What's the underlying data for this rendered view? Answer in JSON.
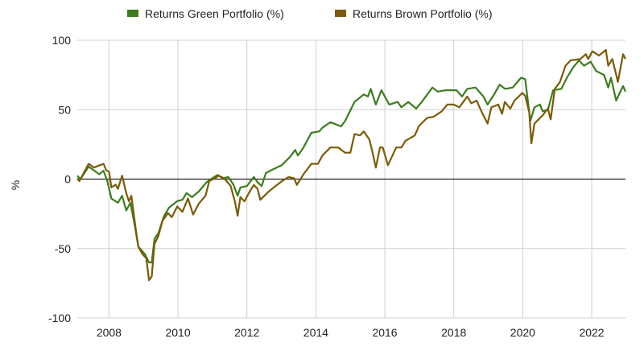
{
  "chart_data": {
    "type": "line",
    "title": "",
    "xlabel": "",
    "ylabel": "%",
    "xlim": [
      2007.08,
      2022.98
    ],
    "ylim": [
      -100,
      100
    ],
    "yticks": [
      -100,
      -50,
      0,
      50,
      100
    ],
    "xticks": [
      2008,
      2010,
      2012,
      2014,
      2016,
      2018,
      2020,
      2022
    ],
    "grid": true,
    "legend": "top",
    "series": [
      {
        "name": "Returns Green Portfolio (%)",
        "color": "#3b7d1d",
        "points": [
          [
            2007.08,
            2.5
          ],
          [
            2007.17,
            0
          ],
          [
            2007.41,
            9
          ],
          [
            2007.72,
            3.5
          ],
          [
            2007.84,
            6
          ],
          [
            2007.95,
            -1.4
          ],
          [
            2008.07,
            -14
          ],
          [
            2008.26,
            -17
          ],
          [
            2008.38,
            -12
          ],
          [
            2008.5,
            -22.6
          ],
          [
            2008.62,
            -17
          ],
          [
            2008.73,
            -31
          ],
          [
            2008.85,
            -48.6
          ],
          [
            2009.04,
            -54
          ],
          [
            2009.16,
            -60
          ],
          [
            2009.24,
            -60
          ],
          [
            2009.32,
            -43
          ],
          [
            2009.43,
            -39
          ],
          [
            2009.59,
            -27
          ],
          [
            2009.74,
            -20.6
          ],
          [
            2009.98,
            -15.8
          ],
          [
            2010.13,
            -14.9
          ],
          [
            2010.25,
            -10
          ],
          [
            2010.41,
            -13
          ],
          [
            2010.6,
            -9
          ],
          [
            2010.83,
            -2.3
          ],
          [
            2010.99,
            0.6
          ],
          [
            2011.15,
            3
          ],
          [
            2011.3,
            0.6
          ],
          [
            2011.46,
            1.5
          ],
          [
            2011.61,
            -4
          ],
          [
            2011.73,
            -12
          ],
          [
            2011.81,
            -6
          ],
          [
            2012.0,
            -5
          ],
          [
            2012.2,
            1.5
          ],
          [
            2012.31,
            -2.3
          ],
          [
            2012.43,
            -5
          ],
          [
            2012.55,
            4.4
          ],
          [
            2012.78,
            7.3
          ],
          [
            2013.01,
            10
          ],
          [
            2013.25,
            16
          ],
          [
            2013.4,
            21
          ],
          [
            2013.48,
            17
          ],
          [
            2013.64,
            22.8
          ],
          [
            2013.87,
            33.4
          ],
          [
            2014.1,
            34.4
          ],
          [
            2014.19,
            37
          ],
          [
            2014.42,
            41
          ],
          [
            2014.73,
            38
          ],
          [
            2014.85,
            42
          ],
          [
            2015.12,
            55.6
          ],
          [
            2015.39,
            61
          ],
          [
            2015.51,
            59.5
          ],
          [
            2015.59,
            65
          ],
          [
            2015.74,
            53.7
          ],
          [
            2015.9,
            64
          ],
          [
            2016.13,
            53.7
          ],
          [
            2016.37,
            55.6
          ],
          [
            2016.48,
            51.7
          ],
          [
            2016.68,
            55.6
          ],
          [
            2016.91,
            50.8
          ],
          [
            2017.07,
            55.6
          ],
          [
            2017.38,
            66
          ],
          [
            2017.53,
            63
          ],
          [
            2017.77,
            64
          ],
          [
            2018.08,
            64
          ],
          [
            2018.24,
            59.5
          ],
          [
            2018.39,
            65
          ],
          [
            2018.63,
            66
          ],
          [
            2018.86,
            59.5
          ],
          [
            2018.98,
            53.7
          ],
          [
            2019.17,
            61
          ],
          [
            2019.33,
            68
          ],
          [
            2019.49,
            65
          ],
          [
            2019.71,
            66
          ],
          [
            2019.95,
            73
          ],
          [
            2020.07,
            72
          ],
          [
            2020.22,
            42
          ],
          [
            2020.34,
            51.7
          ],
          [
            2020.5,
            53.7
          ],
          [
            2020.58,
            48.8
          ],
          [
            2020.73,
            49.8
          ],
          [
            2020.88,
            64
          ],
          [
            2021.12,
            65
          ],
          [
            2021.28,
            73
          ],
          [
            2021.47,
            80.7
          ],
          [
            2021.63,
            85.5
          ],
          [
            2021.78,
            81.7
          ],
          [
            2021.97,
            84.5
          ],
          [
            2022.13,
            77.8
          ],
          [
            2022.36,
            75
          ],
          [
            2022.48,
            66
          ],
          [
            2022.56,
            73
          ],
          [
            2022.71,
            56.6
          ],
          [
            2022.91,
            67
          ],
          [
            2022.98,
            63
          ]
        ]
      },
      {
        "name": "Returns Brown Portfolio (%)",
        "color": "#7b5b05",
        "points": [
          [
            2007.08,
            0.6
          ],
          [
            2007.14,
            -1.4
          ],
          [
            2007.41,
            11
          ],
          [
            2007.56,
            8.3
          ],
          [
            2007.84,
            11
          ],
          [
            2007.92,
            6.4
          ],
          [
            2008.0,
            5.4
          ],
          [
            2008.07,
            -6
          ],
          [
            2008.19,
            -4
          ],
          [
            2008.26,
            -7
          ],
          [
            2008.38,
            2.5
          ],
          [
            2008.5,
            -10
          ],
          [
            2008.58,
            -16
          ],
          [
            2008.65,
            -12
          ],
          [
            2008.77,
            -35
          ],
          [
            2008.85,
            -48.6
          ],
          [
            2008.97,
            -54
          ],
          [
            2009.08,
            -57
          ],
          [
            2009.16,
            -72.8
          ],
          [
            2009.24,
            -70
          ],
          [
            2009.32,
            -46.7
          ],
          [
            2009.43,
            -41
          ],
          [
            2009.55,
            -30
          ],
          [
            2009.71,
            -24.5
          ],
          [
            2009.82,
            -27.4
          ],
          [
            2009.98,
            -19.7
          ],
          [
            2010.13,
            -23.6
          ],
          [
            2010.29,
            -13.9
          ],
          [
            2010.44,
            -25.5
          ],
          [
            2010.6,
            -17.8
          ],
          [
            2010.8,
            -12
          ],
          [
            2010.91,
            -1.4
          ],
          [
            2011.07,
            0.6
          ],
          [
            2011.18,
            2.5
          ],
          [
            2011.34,
            0.6
          ],
          [
            2011.53,
            -5
          ],
          [
            2011.65,
            -16
          ],
          [
            2011.73,
            -26.4
          ],
          [
            2011.81,
            -13
          ],
          [
            2011.93,
            -16
          ],
          [
            2012.08,
            -9
          ],
          [
            2012.2,
            -4.2
          ],
          [
            2012.31,
            -7
          ],
          [
            2012.39,
            -14.9
          ],
          [
            2012.63,
            -9
          ],
          [
            2012.82,
            -5.2
          ],
          [
            2013.02,
            -1.4
          ],
          [
            2013.21,
            1.5
          ],
          [
            2013.37,
            0.6
          ],
          [
            2013.45,
            -4.2
          ],
          [
            2013.64,
            3.5
          ],
          [
            2013.87,
            11
          ],
          [
            2014.06,
            11
          ],
          [
            2014.19,
            17
          ],
          [
            2014.42,
            22.8
          ],
          [
            2014.65,
            22.8
          ],
          [
            2014.85,
            19
          ],
          [
            2015.0,
            19
          ],
          [
            2015.12,
            32.4
          ],
          [
            2015.28,
            31.5
          ],
          [
            2015.39,
            34.4
          ],
          [
            2015.55,
            28.6
          ],
          [
            2015.63,
            20.8
          ],
          [
            2015.74,
            8.3
          ],
          [
            2015.86,
            22.8
          ],
          [
            2015.94,
            22.8
          ],
          [
            2016.09,
            10
          ],
          [
            2016.33,
            22.8
          ],
          [
            2016.48,
            22.8
          ],
          [
            2016.6,
            27.6
          ],
          [
            2016.87,
            31.5
          ],
          [
            2016.99,
            38.2
          ],
          [
            2017.22,
            44
          ],
          [
            2017.42,
            45
          ],
          [
            2017.65,
            48.8
          ],
          [
            2017.81,
            53.7
          ],
          [
            2018.0,
            53.7
          ],
          [
            2018.16,
            51.7
          ],
          [
            2018.39,
            59.5
          ],
          [
            2018.51,
            54.6
          ],
          [
            2018.66,
            56.6
          ],
          [
            2018.82,
            47.9
          ],
          [
            2018.98,
            40
          ],
          [
            2019.09,
            51.7
          ],
          [
            2019.29,
            53.7
          ],
          [
            2019.4,
            47
          ],
          [
            2019.48,
            55.6
          ],
          [
            2019.64,
            50.8
          ],
          [
            2019.76,
            56.6
          ],
          [
            2019.99,
            62
          ],
          [
            2020.07,
            60
          ],
          [
            2020.19,
            47.9
          ],
          [
            2020.25,
            25.7
          ],
          [
            2020.34,
            40
          ],
          [
            2020.58,
            46
          ],
          [
            2020.73,
            50.8
          ],
          [
            2020.81,
            43
          ],
          [
            2020.93,
            65
          ],
          [
            2021.08,
            70
          ],
          [
            2021.24,
            81.7
          ],
          [
            2021.39,
            85.5
          ],
          [
            2021.67,
            86.5
          ],
          [
            2021.83,
            90
          ],
          [
            2021.9,
            86.5
          ],
          [
            2022.02,
            92
          ],
          [
            2022.21,
            89
          ],
          [
            2022.41,
            93
          ],
          [
            2022.48,
            81.7
          ],
          [
            2022.6,
            86.5
          ],
          [
            2022.76,
            70
          ],
          [
            2022.91,
            90
          ],
          [
            2022.98,
            86.5
          ]
        ]
      }
    ]
  }
}
